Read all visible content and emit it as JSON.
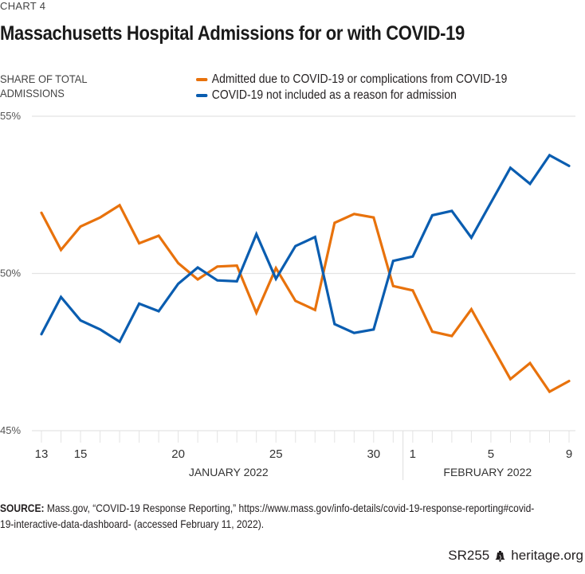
{
  "header": {
    "chart_number": "CHART 4",
    "title": "Massachusetts Hospital Admissions for or with COVID-19"
  },
  "colors": {
    "orange": "#e8720c",
    "blue": "#0a5db0",
    "grid": "#e3e3e3",
    "axis_text": "#555555"
  },
  "footer": {
    "source_label": "SOURCE:",
    "source_text": " Mass.gov, “COVID-19 Response Reporting,” https://www.mass.gov/info-details/covid-19-response-reporting#covid-19-interactive-data-dashboard- (accessed February 11, 2022).",
    "report_id": "SR255",
    "logo_icon": "liberty-bell-icon",
    "site": "heritage.org"
  },
  "chart_data": {
    "type": "line",
    "title": "Massachusetts Hospital Admissions for or with COVID-19",
    "ylabel": "SHARE OF TOTAL ADMISSIONS",
    "xlabel": "",
    "ylim": [
      45,
      55
    ],
    "yticks": [
      45,
      50,
      55
    ],
    "ytick_labels": [
      "45%",
      "50%",
      "55%"
    ],
    "grid": true,
    "legend_position": "top-right",
    "x": [
      "Jan 13",
      "Jan 14",
      "Jan 15",
      "Jan 16",
      "Jan 17",
      "Jan 18",
      "Jan 19",
      "Jan 20",
      "Jan 21",
      "Jan 22",
      "Jan 23",
      "Jan 24",
      "Jan 25",
      "Jan 26",
      "Jan 27",
      "Jan 28",
      "Jan 29",
      "Jan 30",
      "Jan 31",
      "Feb 1",
      "Feb 2",
      "Feb 3",
      "Feb 4",
      "Feb 5",
      "Feb 6",
      "Feb 7",
      "Feb 8",
      "Feb 9"
    ],
    "xtick_labels": [
      {
        "index": 0,
        "label": "13"
      },
      {
        "index": 2,
        "label": "15"
      },
      {
        "index": 7,
        "label": "20"
      },
      {
        "index": 12,
        "label": "25"
      },
      {
        "index": 17,
        "label": "30"
      },
      {
        "index": 19,
        "label": "1"
      },
      {
        "index": 23,
        "label": "5"
      },
      {
        "index": 27,
        "label": "9"
      }
    ],
    "month_groups": [
      {
        "label": "JANUARY 2022",
        "start": 0,
        "end": 18
      },
      {
        "label": "FEBRUARY 2022",
        "start": 19,
        "end": 27
      }
    ],
    "series": [
      {
        "name": "Admitted due to COVID-19 or complications from COVID-19",
        "color": "#e8720c",
        "values": [
          51.93,
          50.75,
          51.49,
          51.78,
          52.17,
          50.96,
          51.2,
          50.33,
          49.81,
          50.22,
          50.25,
          48.75,
          50.17,
          49.13,
          48.84,
          51.61,
          51.89,
          51.78,
          49.6,
          49.46,
          48.15,
          48.01,
          48.86,
          47.75,
          46.64,
          47.15,
          46.24,
          46.58
        ]
      },
      {
        "name": "COVID-19 not included as a reason for admission",
        "color": "#0a5db0",
        "values": [
          48.07,
          49.25,
          48.51,
          48.22,
          47.83,
          49.04,
          48.8,
          49.67,
          50.19,
          49.78,
          49.75,
          51.25,
          49.83,
          50.87,
          51.16,
          48.39,
          48.11,
          48.22,
          50.4,
          50.54,
          51.85,
          51.99,
          51.14,
          52.25,
          53.36,
          52.85,
          53.76,
          53.42
        ]
      }
    ]
  }
}
